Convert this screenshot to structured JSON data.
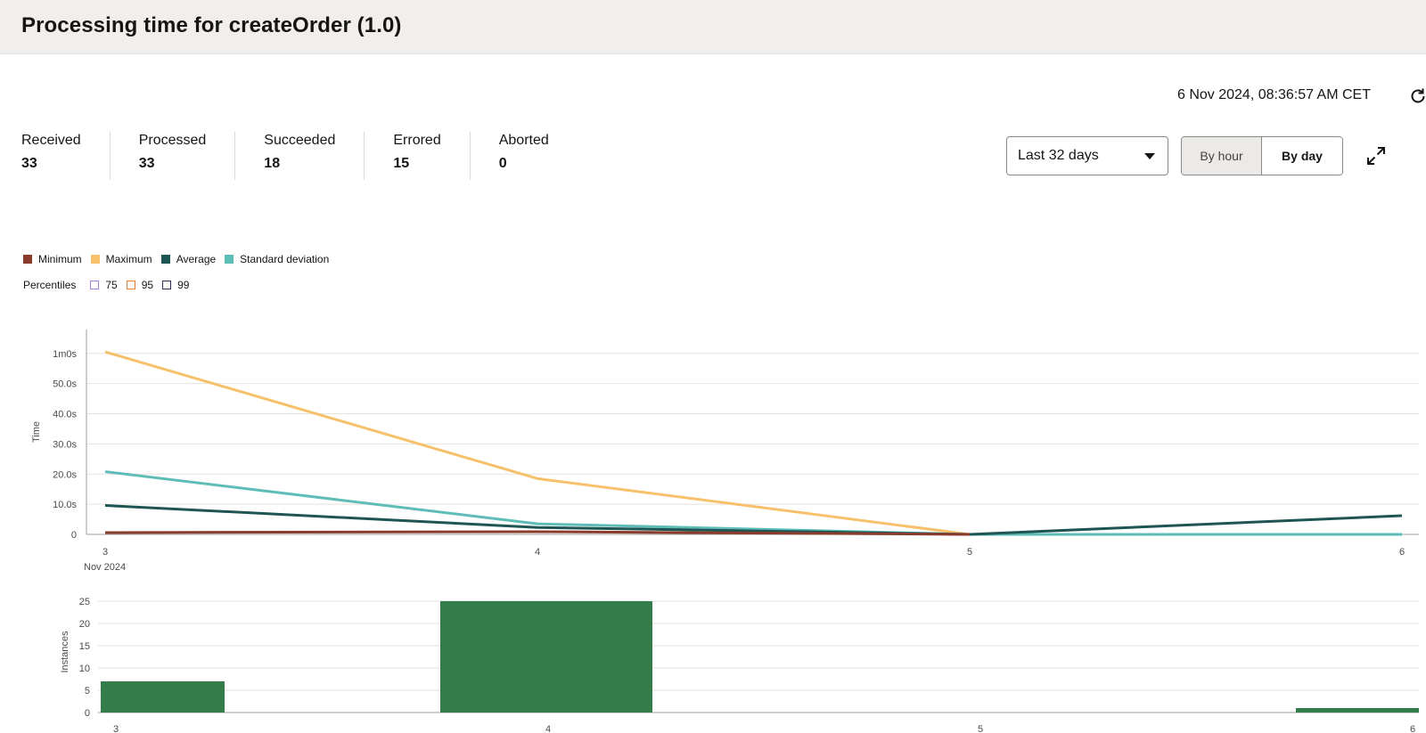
{
  "header": {
    "title": "Processing time for createOrder (1.0)"
  },
  "timestamp": "6 Nov 2024, 08:36:57 AM CET",
  "refresh_icon": "refresh-icon",
  "metrics": [
    {
      "label": "Received",
      "value": "33"
    },
    {
      "label": "Processed",
      "value": "33"
    },
    {
      "label": "Succeeded",
      "value": "18"
    },
    {
      "label": "Errored",
      "value": "15"
    },
    {
      "label": "Aborted",
      "value": "0"
    }
  ],
  "range": {
    "selected": "Last 32 days"
  },
  "granularity": {
    "hour_label": "By hour",
    "day_label": "By day",
    "selected": "By hour"
  },
  "expand_icon": "expand-icon",
  "legend": {
    "series": [
      {
        "label": "Minimum",
        "color": "#8a3b2b"
      },
      {
        "label": "Maximum",
        "color": "#f7c06a"
      },
      {
        "label": "Average",
        "color": "#1e5552"
      },
      {
        "label": "Standard deviation",
        "color": "#5ebdb7"
      }
    ],
    "percentiles_label": "Percentiles",
    "percentiles": [
      {
        "label": "75",
        "color": "#9f7de0"
      },
      {
        "label": "95",
        "color": "#e07a2e"
      },
      {
        "label": "99",
        "color": "#2a2a55"
      }
    ]
  },
  "chart_data": [
    {
      "type": "line",
      "ylabel": "Time",
      "yticks": [
        "0",
        "10.0s",
        "20.0s",
        "30.0s",
        "40.0s",
        "50.0s",
        "1m0s"
      ],
      "ylim": [
        0,
        60
      ],
      "x": [
        3,
        4,
        5,
        6
      ],
      "xticks": [
        "3",
        "4",
        "5",
        "6"
      ],
      "x_sublabel": "Nov 2024",
      "grid": true,
      "series": [
        {
          "name": "Maximum",
          "color": "#f7c06a",
          "x": [
            3,
            4,
            5
          ],
          "values": [
            60.5,
            18.5,
            0
          ]
        },
        {
          "name": "Standard deviation",
          "color": "#5ebdb7",
          "x": [
            3,
            4,
            5,
            6
          ],
          "values": [
            20.8,
            3.5,
            0,
            0
          ]
        },
        {
          "name": "Average",
          "color": "#1e5552",
          "x": [
            3,
            4,
            5,
            6
          ],
          "values": [
            9.6,
            2.3,
            0,
            6.2
          ]
        },
        {
          "name": "Minimum",
          "color": "#8a3b2b",
          "x": [
            3,
            4,
            5
          ],
          "values": [
            0.6,
            0.9,
            0
          ]
        }
      ]
    },
    {
      "type": "bar",
      "ylabel": "Instances",
      "yticks": [
        "0",
        "5",
        "10",
        "15",
        "20",
        "25"
      ],
      "ylim": [
        0,
        25
      ],
      "xticks": [
        "3",
        "4",
        "5",
        "6"
      ],
      "grid": true,
      "color": "#347c4a",
      "bars": [
        {
          "x": 3,
          "value": 7
        },
        {
          "x": 4,
          "value": 25
        },
        {
          "x": 5,
          "value": 0
        },
        {
          "x": 6,
          "value": 1
        }
      ]
    }
  ]
}
